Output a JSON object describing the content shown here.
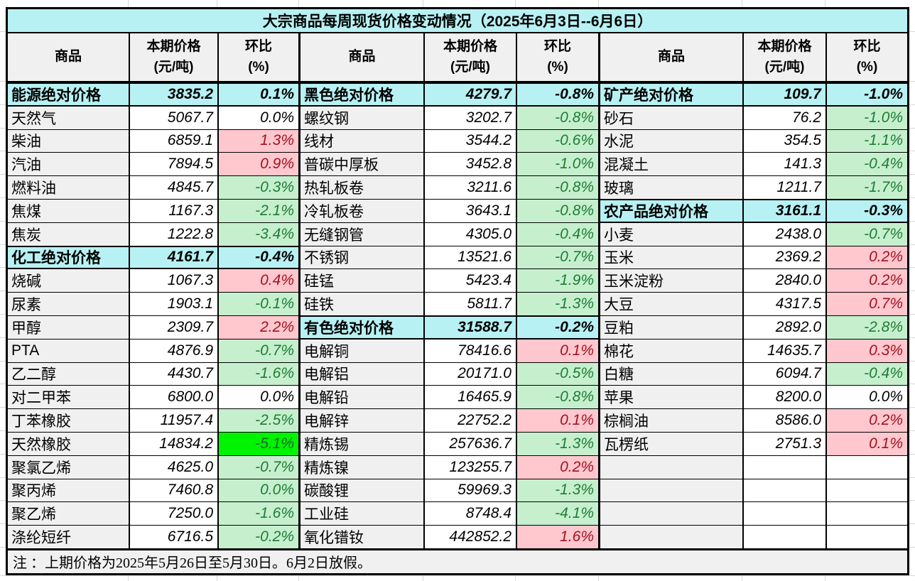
{
  "title": "大宗商品每周现货价格变动情况（2025年6月3日--6月6日）",
  "header": {
    "commodity": "商品",
    "price_line1": "本期价格",
    "price_line2": "(元/吨)",
    "pct_line1": "环比",
    "pct_line2": "(%)"
  },
  "note": "注 ：上期价格为2025年5月26日至5月30日。6月2日放假。",
  "colors": {
    "title_cyan": "#b7f1f3",
    "name_gray": "#f0f0f0",
    "rise_pink": "#ffc7ce",
    "fall_green": "#c6efce",
    "strong_fall_green": "#00f300",
    "rise_text_red": "#a21120",
    "fall_text_green": "#1d7d34",
    "border_black": "#000000"
  },
  "groups": [
    {
      "rows": [
        {
          "name": "能源绝对价格",
          "price": "3835.2",
          "pct": "0.1%",
          "kind": "category",
          "pct_style": "cat"
        },
        {
          "name": "天然气",
          "price": "5067.7",
          "pct": "0.0%",
          "kind": "item",
          "pct_style": "flat"
        },
        {
          "name": "柴油",
          "price": "6859.1",
          "pct": "1.3%",
          "kind": "item",
          "pct_style": "up"
        },
        {
          "name": "汽油",
          "price": "7894.5",
          "pct": "0.9%",
          "kind": "item",
          "pct_style": "up"
        },
        {
          "name": "燃料油",
          "price": "4845.7",
          "pct": "-0.3%",
          "kind": "item",
          "pct_style": "down"
        },
        {
          "name": "焦煤",
          "price": "1167.3",
          "pct": "-2.1%",
          "kind": "item",
          "pct_style": "down"
        },
        {
          "name": "焦炭",
          "price": "1222.8",
          "pct": "-3.4%",
          "kind": "item",
          "pct_style": "down"
        },
        {
          "name": "化工绝对价格",
          "price": "4161.7",
          "pct": "-0.4%",
          "kind": "category",
          "pct_style": "cat"
        },
        {
          "name": "烧碱",
          "price": "1067.3",
          "pct": "0.4%",
          "kind": "item",
          "pct_style": "up"
        },
        {
          "name": "尿素",
          "price": "1903.1",
          "pct": "-0.1%",
          "kind": "item",
          "pct_style": "down"
        },
        {
          "name": "甲醇",
          "price": "2309.7",
          "pct": "2.2%",
          "kind": "item",
          "pct_style": "up"
        },
        {
          "name": "PTA",
          "price": "4876.9",
          "pct": "-0.7%",
          "kind": "item",
          "pct_style": "down"
        },
        {
          "name": "乙二醇",
          "price": "4430.7",
          "pct": "-1.6%",
          "kind": "item",
          "pct_style": "down"
        },
        {
          "name": "对二甲苯",
          "price": "6800.0",
          "pct": "0.0%",
          "kind": "item",
          "pct_style": "flat"
        },
        {
          "name": "丁苯橡胶",
          "price": "11957.4",
          "pct": "-2.5%",
          "kind": "item",
          "pct_style": "down"
        },
        {
          "name": "天然橡胶",
          "price": "14834.2",
          "pct": "-5.1%",
          "kind": "item",
          "pct_style": "strong"
        },
        {
          "name": "聚氯乙烯",
          "price": "4625.0",
          "pct": "-0.7%",
          "kind": "item",
          "pct_style": "down"
        },
        {
          "name": "聚丙烯",
          "price": "7460.8",
          "pct": "0.0%",
          "kind": "item",
          "pct_style": "down"
        },
        {
          "name": "聚乙烯",
          "price": "7250.0",
          "pct": "-1.6%",
          "kind": "item",
          "pct_style": "down"
        },
        {
          "name": "涤纶短纤",
          "price": "6716.5",
          "pct": "-0.2%",
          "kind": "item",
          "pct_style": "down"
        }
      ]
    },
    {
      "rows": [
        {
          "name": "黑色绝对价格",
          "price": "4279.7",
          "pct": "-0.8%",
          "kind": "category",
          "pct_style": "cat"
        },
        {
          "name": "螺纹钢",
          "price": "3202.7",
          "pct": "-0.8%",
          "kind": "item",
          "pct_style": "down"
        },
        {
          "name": "线材",
          "price": "3544.2",
          "pct": "-0.6%",
          "kind": "item",
          "pct_style": "down"
        },
        {
          "name": "普碳中厚板",
          "price": "3452.8",
          "pct": "-1.0%",
          "kind": "item",
          "pct_style": "down"
        },
        {
          "name": "热轧板卷",
          "price": "3211.6",
          "pct": "-0.8%",
          "kind": "item",
          "pct_style": "down"
        },
        {
          "name": "冷轧板卷",
          "price": "3643.1",
          "pct": "-0.8%",
          "kind": "item",
          "pct_style": "down"
        },
        {
          "name": "无缝钢管",
          "price": "4305.0",
          "pct": "-0.4%",
          "kind": "item",
          "pct_style": "down"
        },
        {
          "name": "不锈钢",
          "price": "13521.6",
          "pct": "-0.7%",
          "kind": "item",
          "pct_style": "down"
        },
        {
          "name": "硅锰",
          "price": "5423.4",
          "pct": "-1.9%",
          "kind": "item",
          "pct_style": "down"
        },
        {
          "name": "硅铁",
          "price": "5811.7",
          "pct": "-1.3%",
          "kind": "item",
          "pct_style": "down"
        },
        {
          "name": "有色绝对价格",
          "price": "31588.7",
          "pct": "-0.2%",
          "kind": "category",
          "pct_style": "cat"
        },
        {
          "name": "电解铜",
          "price": "78416.6",
          "pct": "0.1%",
          "kind": "item",
          "pct_style": "up"
        },
        {
          "name": "电解铝",
          "price": "20171.0",
          "pct": "-0.5%",
          "kind": "item",
          "pct_style": "down"
        },
        {
          "name": "电解铅",
          "price": "16465.9",
          "pct": "-0.8%",
          "kind": "item",
          "pct_style": "down"
        },
        {
          "name": "电解锌",
          "price": "22752.2",
          "pct": "0.1%",
          "kind": "item",
          "pct_style": "up"
        },
        {
          "name": "精炼锡",
          "price": "257636.7",
          "pct": "-1.3%",
          "kind": "item",
          "pct_style": "down"
        },
        {
          "name": "精炼镍",
          "price": "123255.7",
          "pct": "0.2%",
          "kind": "item",
          "pct_style": "up"
        },
        {
          "name": "碳酸锂",
          "price": "59969.3",
          "pct": "-1.3%",
          "kind": "item",
          "pct_style": "down"
        },
        {
          "name": "工业硅",
          "price": "8748.4",
          "pct": "-4.1%",
          "kind": "item",
          "pct_style": "down"
        },
        {
          "name": "氧化镨钕",
          "price": "442852.2",
          "pct": "1.6%",
          "kind": "item",
          "pct_style": "up"
        }
      ]
    },
    {
      "rows": [
        {
          "name": "矿产绝对价格",
          "price": "109.7",
          "pct": "-1.0%",
          "kind": "category",
          "pct_style": "cat"
        },
        {
          "name": "砂石",
          "price": "76.2",
          "pct": "-1.0%",
          "kind": "item",
          "pct_style": "down"
        },
        {
          "name": "水泥",
          "price": "354.5",
          "pct": "-1.1%",
          "kind": "item",
          "pct_style": "down"
        },
        {
          "name": "混凝土",
          "price": "141.3",
          "pct": "-0.4%",
          "kind": "item",
          "pct_style": "down"
        },
        {
          "name": "玻璃",
          "price": "1211.7",
          "pct": "-1.7%",
          "kind": "item",
          "pct_style": "down"
        },
        {
          "name": "农产品绝对价格",
          "price": "3161.1",
          "pct": "-0.3%",
          "kind": "category",
          "pct_style": "cat"
        },
        {
          "name": "小麦",
          "price": "2438.0",
          "pct": "-0.7%",
          "kind": "item",
          "pct_style": "down"
        },
        {
          "name": "玉米",
          "price": "2369.2",
          "pct": "0.2%",
          "kind": "item",
          "pct_style": "up"
        },
        {
          "name": "玉米淀粉",
          "price": "2840.0",
          "pct": "0.2%",
          "kind": "item",
          "pct_style": "up"
        },
        {
          "name": "大豆",
          "price": "4317.5",
          "pct": "0.7%",
          "kind": "item",
          "pct_style": "up"
        },
        {
          "name": "豆粕",
          "price": "2892.0",
          "pct": "-2.8%",
          "kind": "item",
          "pct_style": "down"
        },
        {
          "name": "棉花",
          "price": "14635.7",
          "pct": "0.3%",
          "kind": "item",
          "pct_style": "up"
        },
        {
          "name": "白糖",
          "price": "6094.7",
          "pct": "-0.4%",
          "kind": "item",
          "pct_style": "down"
        },
        {
          "name": "苹果",
          "price": "8200.0",
          "pct": "0.0%",
          "kind": "item",
          "pct_style": "flat"
        },
        {
          "name": "棕榈油",
          "price": "8586.0",
          "pct": "0.2%",
          "kind": "item",
          "pct_style": "up"
        },
        {
          "name": "瓦楞纸",
          "price": "2751.3",
          "pct": "0.1%",
          "kind": "item",
          "pct_style": "up"
        },
        {
          "name": "",
          "price": "",
          "pct": "",
          "kind": "empty",
          "pct_style": "none"
        },
        {
          "name": "",
          "price": "",
          "pct": "",
          "kind": "empty",
          "pct_style": "none"
        },
        {
          "name": "",
          "price": "",
          "pct": "",
          "kind": "empty",
          "pct_style": "none"
        },
        {
          "name": "",
          "price": "",
          "pct": "",
          "kind": "empty",
          "pct_style": "none"
        }
      ]
    }
  ]
}
